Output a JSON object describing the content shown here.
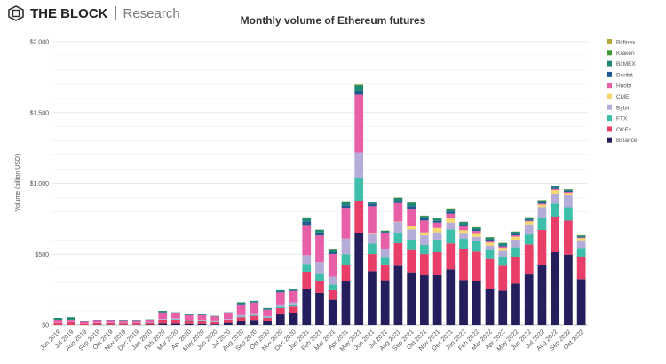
{
  "header": {
    "brand": "THE BLOCK",
    "section": "Research"
  },
  "chart_data": {
    "type": "bar",
    "stacked": true,
    "title": "Monthly volume of Ethereum futures",
    "xlabel": "",
    "ylabel": "Volume (billion USD)",
    "ylim": [
      0,
      2000
    ],
    "yticks": [
      "$0",
      "$500",
      "$1,000",
      "$1,500",
      "$2,000"
    ],
    "ytick_values": [
      0,
      500,
      1000,
      1500,
      2000
    ],
    "grid": true,
    "legend": "right",
    "categories": [
      "Jun 2019",
      "Jul 2019",
      "Aug 2019",
      "Sep 2019",
      "Oct 2019",
      "Nov 2019",
      "Dec 2019",
      "Jan 2020",
      "Feb 2020",
      "Mar 2020",
      "Apr 2020",
      "May 2020",
      "Jun 2020",
      "Jul 2020",
      "Aug 2020",
      "Sep 2020",
      "Oct 2020",
      "Nov 2020",
      "Dec 2020",
      "Jan 2021",
      "Feb 2021",
      "Mar 2021",
      "Apr 2021",
      "May 2021",
      "Jun 2021",
      "Jul 2021",
      "Aug 2021",
      "Sep 2021",
      "Oct 2021",
      "Nov 2021",
      "Dec 2021",
      "Jan 2022",
      "Feb 2022",
      "Mar 2022",
      "Apr 2022",
      "May 2022",
      "Jun 2022",
      "Jul 2022",
      "Aug 2022",
      "Sep 2022",
      "Oct 2022"
    ],
    "series": [
      {
        "name": "Binance",
        "color": "#241f5c",
        "values": [
          0,
          0,
          0,
          2,
          2,
          2,
          2,
          3,
          10,
          10,
          8,
          8,
          5,
          15,
          25,
          30,
          25,
          75,
          85,
          253,
          226,
          178,
          307,
          648,
          380,
          316,
          418,
          372,
          351,
          351,
          393,
          318,
          309,
          257,
          242,
          293,
          357,
          420,
          514,
          497,
          324
        ]
      },
      {
        "name": "OKEx",
        "color": "#e83e68",
        "values": [
          15,
          20,
          10,
          12,
          12,
          10,
          10,
          12,
          25,
          25,
          20,
          18,
          15,
          20,
          30,
          35,
          25,
          45,
          45,
          123,
          88,
          67,
          115,
          230,
          121,
          111,
          159,
          157,
          150,
          163,
          182,
          217,
          209,
          209,
          176,
          184,
          211,
          251,
          251,
          240,
          153
        ]
      },
      {
        "name": "FTX",
        "color": "#3dbfaa",
        "values": [
          0,
          0,
          0,
          0,
          0,
          0,
          0,
          1,
          3,
          5,
          3,
          3,
          3,
          3,
          5,
          5,
          5,
          10,
          15,
          54,
          46,
          40,
          77,
          157,
          73,
          48,
          71,
          73,
          63,
          88,
          100,
          73,
          73,
          63,
          63,
          71,
          71,
          88,
          92,
          94,
          67
        ]
      },
      {
        "name": "Bybit",
        "color": "#b6acd9",
        "values": [
          2,
          2,
          1,
          2,
          2,
          2,
          2,
          2,
          5,
          8,
          4,
          4,
          3,
          5,
          10,
          8,
          8,
          15,
          15,
          63,
          84,
          56,
          111,
          184,
          67,
          61,
          79,
          73,
          69,
          52,
          48,
          36,
          31,
          31,
          42,
          54,
          71,
          73,
          69,
          84,
          54
        ]
      },
      {
        "name": "CME",
        "color": "#f5d76e",
        "values": [
          0,
          0,
          0,
          0,
          0,
          0,
          0,
          0,
          0,
          0,
          0,
          0,
          0,
          0,
          0,
          0,
          0,
          0,
          0,
          0,
          0,
          0,
          0,
          0,
          3,
          2,
          3,
          21,
          21,
          31,
          29,
          25,
          21,
          21,
          21,
          21,
          21,
          17,
          27,
          17,
          15
        ]
      },
      {
        "name": "Huobi",
        "color": "#e85fa8",
        "values": [
          15,
          15,
          12,
          14,
          14,
          14,
          14,
          18,
          45,
          35,
          35,
          36,
          34,
          40,
          75,
          80,
          45,
          85,
          80,
          213,
          188,
          161,
          217,
          408,
          194,
          113,
          130,
          125,
          84,
          38,
          33,
          27,
          21,
          10,
          10,
          10,
          5,
          8,
          8,
          8,
          4
        ]
      },
      {
        "name": "Deribit",
        "color": "#1f5a92",
        "values": [
          1,
          1,
          1,
          1,
          1,
          1,
          1,
          1,
          2,
          2,
          1,
          2,
          2,
          2,
          5,
          4,
          4,
          5,
          5,
          25,
          21,
          12,
          17,
          25,
          17,
          6,
          17,
          17,
          15,
          12,
          14,
          12,
          10,
          11,
          9,
          10,
          9,
          9,
          8,
          7,
          6
        ]
      },
      {
        "name": "BitMEX",
        "color": "#1f8a73",
        "values": [
          17,
          17,
          1,
          4,
          4,
          1,
          1,
          3,
          10,
          5,
          4,
          4,
          3,
          5,
          10,
          8,
          8,
          10,
          10,
          27,
          19,
          17,
          27,
          38,
          13,
          8,
          21,
          25,
          17,
          17,
          22,
          19,
          15,
          16,
          14,
          15,
          14,
          14,
          13,
          10,
          9
        ]
      },
      {
        "name": "Kraken",
        "color": "#3f9a35",
        "values": [
          0,
          0,
          0,
          0,
          0,
          0,
          0,
          0,
          0,
          0,
          0,
          0,
          0,
          0,
          0,
          0,
          0,
          0,
          0,
          1,
          1,
          1,
          2,
          5,
          1,
          1,
          1,
          1,
          1,
          1,
          1,
          1,
          1,
          1,
          1,
          1,
          1,
          1,
          1,
          1,
          1
        ]
      },
      {
        "name": "Bitfinex",
        "color": "#b5a83a",
        "values": [
          0,
          0,
          0,
          0,
          0,
          0,
          0,
          0,
          0,
          0,
          0,
          0,
          0,
          0,
          0,
          0,
          0,
          0,
          0,
          1,
          1,
          1,
          1,
          3,
          1,
          1,
          1,
          1,
          1,
          1,
          1,
          1,
          1,
          1,
          1,
          1,
          1,
          1,
          1,
          1,
          1
        ]
      }
    ]
  }
}
